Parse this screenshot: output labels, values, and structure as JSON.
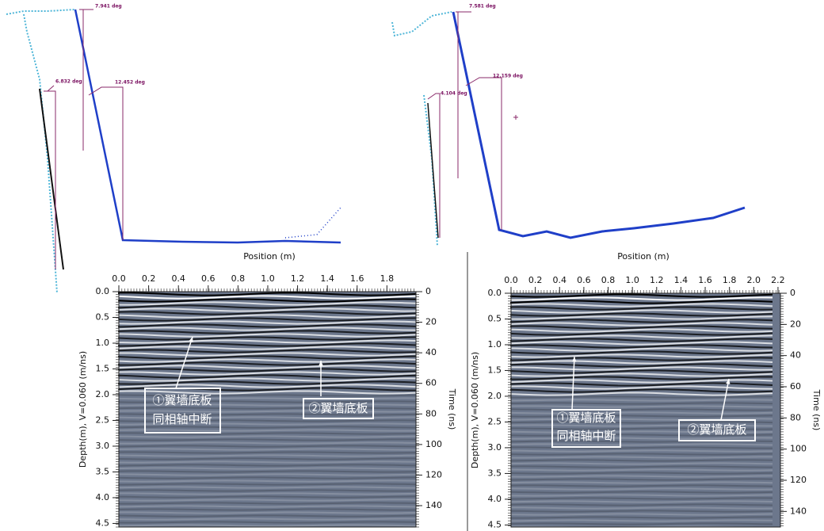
{
  "chart_data": [
    {
      "type": "radargram",
      "xlabel": "Position (m)",
      "ylabel": "Depth(m), V=0.060 (m/ns)",
      "y2label": "Time (ns)",
      "xlim": [
        0,
        1.995
      ],
      "xticks": [
        {
          "value": 0,
          "label": "0.0"
        },
        0.2,
        0.4,
        0.6,
        0.8,
        {
          "value": 1,
          "label": "1.0"
        },
        1.2,
        1.4,
        1.6,
        1.8
      ],
      "ylim": [
        0,
        4.57
      ],
      "yticks": [
        {
          "value": 0,
          "label": "0.0"
        },
        0.5,
        {
          "value": 1,
          "label": "1.0"
        },
        1.5,
        {
          "value": 2,
          "label": "2.0"
        },
        2.5,
        {
          "value": 3,
          "label": "3.0"
        },
        3.5,
        {
          "value": 4,
          "label": "4.0"
        },
        4.5
      ],
      "y2lim": [
        0,
        154
      ],
      "y2ticks": [
        0,
        20,
        40,
        60,
        80,
        100,
        120,
        140
      ],
      "angle_labels": [
        "7.941 deg",
        "6.832 deg",
        "12.452 deg"
      ],
      "annotations": [
        "①翼墙底板",
        "同相轴中断",
        "②翼墙底板"
      ]
    },
    {
      "type": "radargram",
      "xlabel": "Position (m)",
      "ylabel": "Depth(m), V=0.060 (m/ns)",
      "y2label": "Time (ns)",
      "xlim": [
        0,
        2.22
      ],
      "xticks": [
        {
          "value": 0,
          "label": "0.0"
        },
        0.2,
        0.4,
        0.6,
        0.8,
        {
          "value": 1,
          "label": "1.0"
        },
        1.2,
        1.4,
        1.6,
        1.8,
        {
          "value": 2,
          "label": "2.0"
        },
        2.2
      ],
      "ylim": [
        0,
        4.54
      ],
      "yticks": [
        {
          "value": 0,
          "label": "0.0"
        },
        0.5,
        {
          "value": 1,
          "label": "1.0"
        },
        1.5,
        {
          "value": 2,
          "label": "2.0"
        },
        2.5,
        {
          "value": 3,
          "label": "3.0"
        },
        3.5,
        {
          "value": 4,
          "label": "4.0"
        },
        4.5
      ],
      "y2lim": [
        0,
        150
      ],
      "y2ticks": [
        0,
        20,
        40,
        60,
        80,
        100,
        120,
        140
      ],
      "angle_labels": [
        "7.581 deg",
        "12.159 deg",
        "4.104 deg"
      ],
      "annotations": [
        "①翼墙底板",
        "同相轴中断",
        "②翼墙底板"
      ]
    }
  ]
}
